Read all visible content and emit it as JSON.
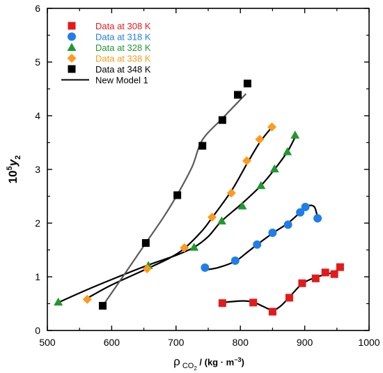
{
  "chart_data": {
    "type": "scatter",
    "xlim": [
      500,
      1000
    ],
    "ylim": [
      0,
      6
    ],
    "x_ticks": [
      500,
      600,
      700,
      800,
      900,
      1000
    ],
    "y_ticks": [
      0,
      1,
      2,
      3,
      4,
      5,
      6
    ],
    "x_tick_labels": [
      "500",
      "600",
      "700",
      "800",
      "900",
      "1000"
    ],
    "y_tick_labels": [
      "0",
      "1",
      "2",
      "3",
      "4",
      "5",
      "6"
    ],
    "xlabel": {
      "rho": "ρ",
      "sub": "CO",
      "sub2": "2",
      "unit_open": " / (kg · m",
      "unit_exp": "−3",
      "unit_close": ")"
    },
    "ylabel": {
      "base": "10",
      "exp": "5",
      "var": "y",
      "sub": "2"
    },
    "grid": false,
    "legend_position": "top-left",
    "series": [
      {
        "name": "Data at 308 K",
        "marker": "square",
        "color": "#e31a1c",
        "points": [
          [
            772,
            0.51
          ],
          [
            820,
            0.52
          ],
          [
            850,
            0.35
          ],
          [
            876,
            0.61
          ],
          [
            896,
            0.88
          ],
          [
            917,
            0.97
          ],
          [
            932,
            1.08
          ],
          [
            946,
            1.05
          ],
          [
            955,
            1.18
          ]
        ],
        "model": [
          [
            772,
            0.52
          ],
          [
            790,
            0.54
          ],
          [
            805,
            0.55
          ],
          [
            820,
            0.53
          ],
          [
            835,
            0.45
          ],
          [
            850,
            0.38
          ],
          [
            862,
            0.45
          ],
          [
            876,
            0.62
          ],
          [
            896,
            0.87
          ],
          [
            917,
            0.99
          ],
          [
            935,
            1.05
          ],
          [
            946,
            1.09
          ],
          [
            955,
            1.17
          ]
        ]
      },
      {
        "name": "Data at 318 K",
        "marker": "circle",
        "color": "#1f7ee8",
        "points": [
          [
            745,
            1.17
          ],
          [
            792,
            1.3
          ],
          [
            826,
            1.6
          ],
          [
            850,
            1.82
          ],
          [
            874,
            1.97
          ],
          [
            893,
            2.2
          ],
          [
            901,
            2.3
          ],
          [
            920,
            2.09
          ]
        ],
        "model": [
          [
            745,
            1.13
          ],
          [
            765,
            1.17
          ],
          [
            792,
            1.29
          ],
          [
            810,
            1.45
          ],
          [
            826,
            1.6
          ],
          [
            850,
            1.81
          ],
          [
            874,
            2.0
          ],
          [
            893,
            2.2
          ],
          [
            905,
            2.32
          ],
          [
            915,
            2.3
          ],
          [
            920,
            2.1
          ]
        ]
      },
      {
        "name": "Data at 328 K",
        "marker": "triangle",
        "color": "#1f9a2e",
        "points": [
          [
            517,
            0.53
          ],
          [
            657,
            1.21
          ],
          [
            728,
            1.55
          ],
          [
            771,
            2.04
          ],
          [
            803,
            2.32
          ],
          [
            832,
            2.7
          ],
          [
            853,
            3.01
          ],
          [
            873,
            3.33
          ],
          [
            885,
            3.64
          ]
        ],
        "model": [
          [
            517,
            0.52
          ],
          [
            560,
            0.75
          ],
          [
            600,
            0.95
          ],
          [
            657,
            1.22
          ],
          [
            700,
            1.4
          ],
          [
            728,
            1.55
          ],
          [
            750,
            1.75
          ],
          [
            771,
            2.04
          ],
          [
            803,
            2.37
          ],
          [
            832,
            2.7
          ],
          [
            853,
            3.0
          ],
          [
            873,
            3.33
          ],
          [
            885,
            3.6
          ]
        ]
      },
      {
        "name": "Data at 338 K",
        "marker": "diamond",
        "color": "#ff9a1a",
        "points": [
          [
            562,
            0.58
          ],
          [
            655,
            1.15
          ],
          [
            713,
            1.54
          ],
          [
            756,
            2.11
          ],
          [
            786,
            2.56
          ],
          [
            810,
            3.16
          ],
          [
            830,
            3.56
          ],
          [
            849,
            3.79
          ]
        ],
        "model": [
          [
            562,
            0.6
          ],
          [
            600,
            0.85
          ],
          [
            655,
            1.15
          ],
          [
            690,
            1.35
          ],
          [
            713,
            1.53
          ],
          [
            740,
            1.85
          ],
          [
            756,
            2.1
          ],
          [
            786,
            2.6
          ],
          [
            810,
            3.1
          ],
          [
            830,
            3.5
          ],
          [
            849,
            3.79
          ]
        ]
      },
      {
        "name": "Data at 348 K",
        "marker": "square",
        "color": "#000000",
        "points": [
          [
            586,
            0.46
          ],
          [
            653,
            1.63
          ],
          [
            702,
            2.52
          ],
          [
            741,
            3.44
          ],
          [
            772,
            3.92
          ],
          [
            796,
            4.39
          ],
          [
            811,
            4.6
          ]
        ],
        "model": [
          [
            586,
            0.46
          ],
          [
            620,
            1.05
          ],
          [
            653,
            1.63
          ],
          [
            680,
            2.1
          ],
          [
            702,
            2.53
          ],
          [
            725,
            3.05
          ],
          [
            741,
            3.55
          ],
          [
            772,
            3.95
          ],
          [
            796,
            4.25
          ],
          [
            808,
            4.4
          ]
        ]
      }
    ],
    "model_legend": {
      "name": "New Model 1",
      "color": "#000000"
    }
  }
}
